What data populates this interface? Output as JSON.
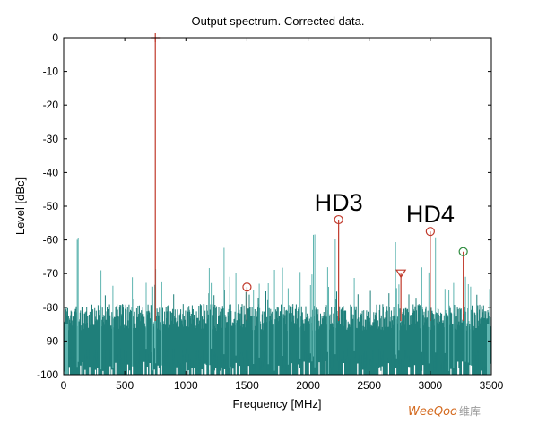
{
  "chart_data": {
    "type": "line",
    "title": "Output spectrum. Corrected data.",
    "xlabel": "Frequency [MHz]",
    "ylabel": "Level [dBc]",
    "xlim": [
      0,
      3500
    ],
    "ylim": [
      -100,
      0
    ],
    "x_ticks": [
      0,
      500,
      1000,
      1500,
      2000,
      2500,
      3000,
      3500
    ],
    "y_ticks": [
      0,
      -10,
      -20,
      -30,
      -40,
      -50,
      -60,
      -70,
      -80,
      -90,
      -100
    ],
    "grid": false,
    "legend": "none",
    "noise_floor": {
      "name": "",
      "freq_range_mhz": [
        0,
        3500
      ],
      "level_range_dbc": [
        -100,
        -58
      ],
      "typical_top_dbc": -80,
      "color": "#1f7f7a"
    },
    "tones": [
      {
        "label": "",
        "freq_mhz": 750,
        "level_dbc": 0,
        "marker": "plus",
        "marker_color": "#c0392b"
      },
      {
        "label": "",
        "freq_mhz": 1500,
        "level_dbc": -74,
        "marker": "circle",
        "marker_color": "#c0392b"
      },
      {
        "label": "HD3",
        "freq_mhz": 2250,
        "level_dbc": -54,
        "marker": "circle",
        "marker_color": "#c0392b"
      },
      {
        "label": "",
        "freq_mhz": 2760,
        "level_dbc": -70,
        "marker": "triangle-down",
        "marker_color": "#c0392b"
      },
      {
        "label": "HD4",
        "freq_mhz": 3000,
        "level_dbc": -57.5,
        "marker": "circle",
        "marker_color": "#c0392b"
      },
      {
        "label": "",
        "freq_mhz": 3270,
        "level_dbc": -63.5,
        "marker": "circle",
        "marker_color": "#2e8b3e"
      }
    ],
    "colors": {
      "stem": "#c0392b",
      "noise": "#1f7f7a",
      "noise_light": "#5fb5b0"
    }
  },
  "watermark": {
    "brand": "WeeQoo",
    "cn": "维库"
  }
}
